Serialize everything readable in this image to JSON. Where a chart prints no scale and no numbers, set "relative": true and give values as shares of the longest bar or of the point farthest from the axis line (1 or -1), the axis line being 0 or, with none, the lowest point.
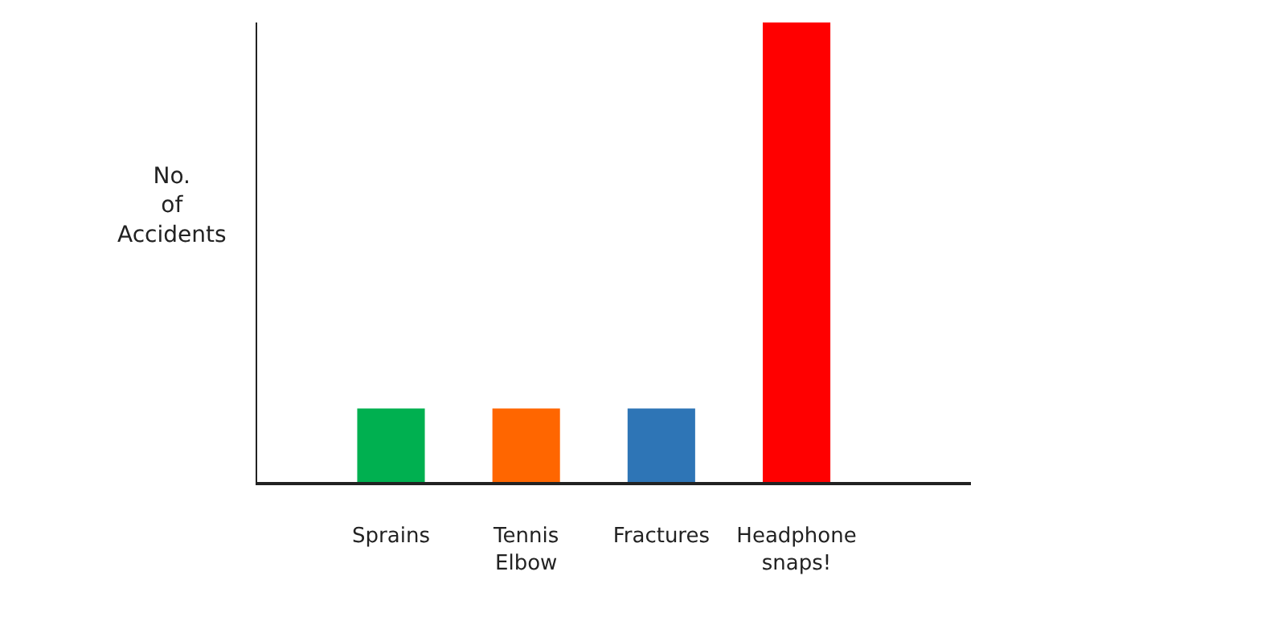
{
  "chart_data": {
    "type": "bar",
    "ylabel": "No. of Accidents",
    "relative": true,
    "categories": [
      "Sprains",
      "Tennis Elbow",
      "Fractures",
      "Headphone snaps!"
    ],
    "values": [
      0.16,
      0.16,
      0.16,
      1
    ],
    "colors": [
      "#00b050",
      "#ff6600",
      "#2e75b6",
      "#ff0000"
    ],
    "grid": false
  }
}
